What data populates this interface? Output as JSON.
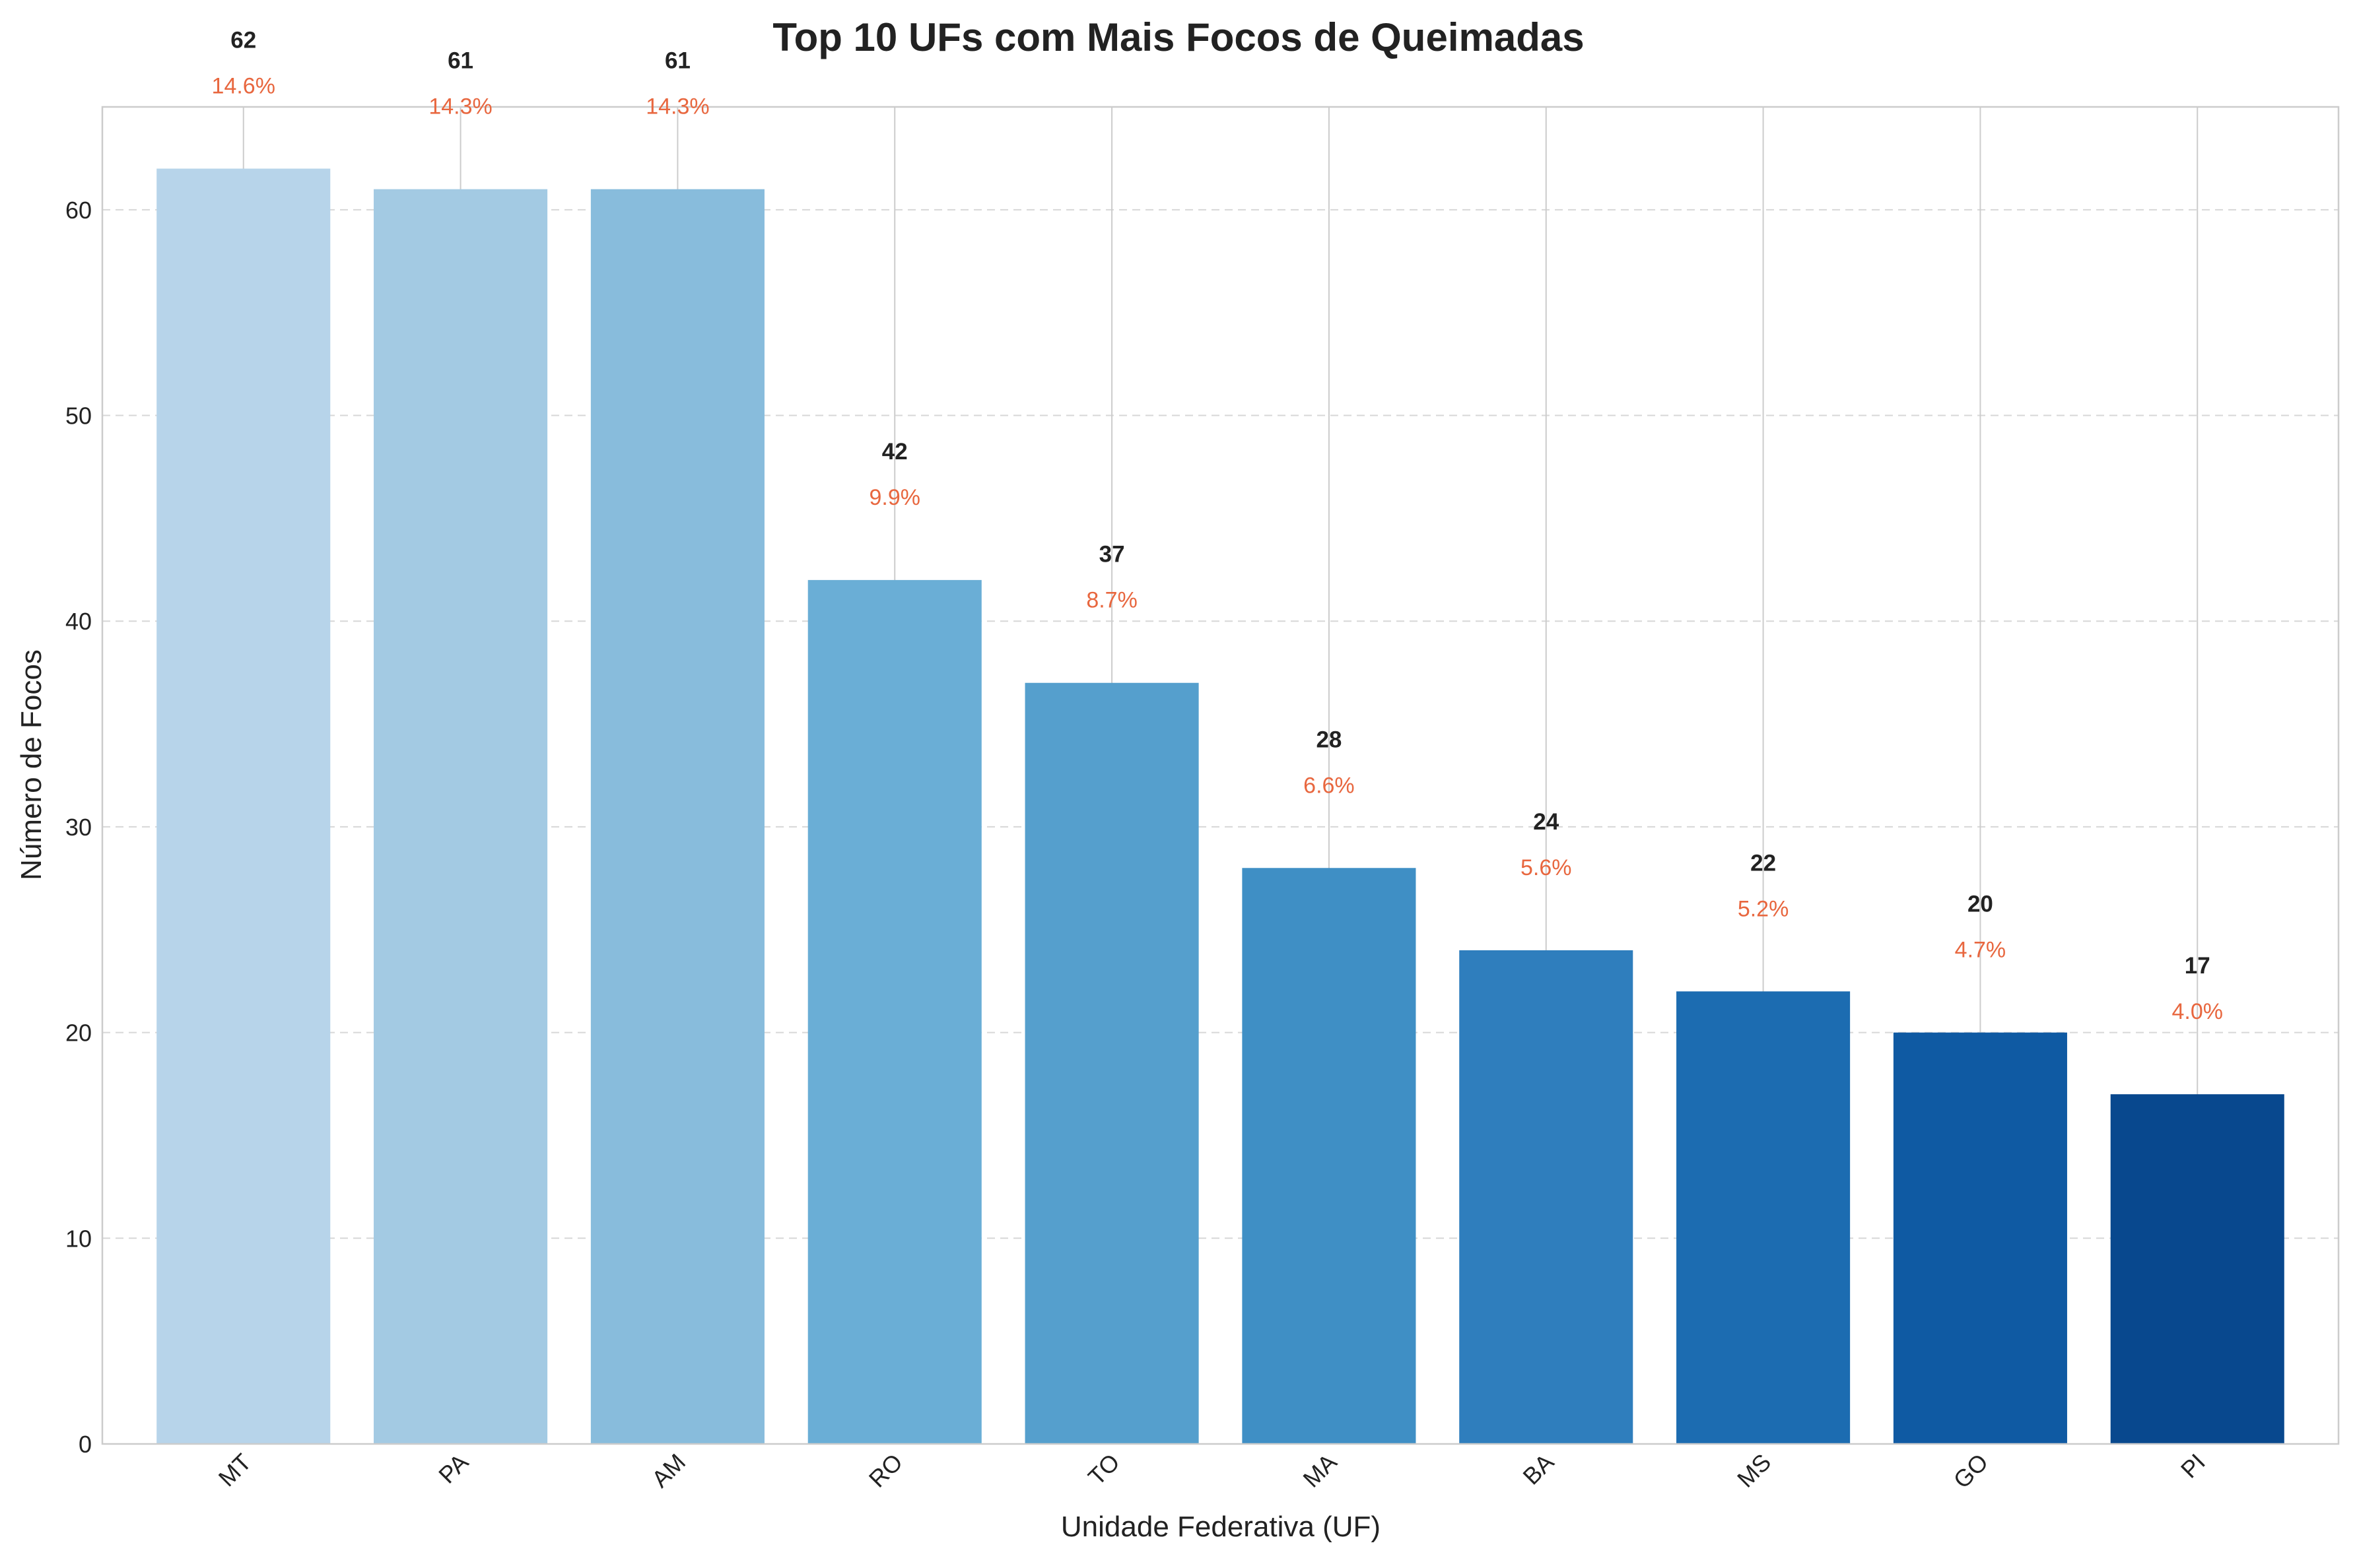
{
  "chart_data": {
    "type": "bar",
    "title": "Top 10 UFs com Mais Focos de Queimadas",
    "xlabel": "Unidade Federativa (UF)",
    "ylabel": "Número de Focos",
    "categories": [
      "MT",
      "PA",
      "AM",
      "RO",
      "TO",
      "MA",
      "BA",
      "MS",
      "GO",
      "PI"
    ],
    "values": [
      62,
      61,
      61,
      42,
      37,
      28,
      24,
      22,
      20,
      17
    ],
    "percent_labels": [
      "14.6%",
      "14.3%",
      "14.3%",
      "9.9%",
      "8.7%",
      "6.6%",
      "5.6%",
      "5.2%",
      "4.7%",
      "4.0%"
    ],
    "ylim": [
      0,
      65
    ],
    "yticks": [
      0,
      10,
      20,
      30,
      40,
      50,
      60
    ],
    "grid": true,
    "legend": false,
    "colors": {
      "bars": [
        "#b7d4ea",
        "#a3cae3",
        "#88bcdc",
        "#6aaed6",
        "#559fcd",
        "#3f8fc5",
        "#2f7ebd",
        "#1c6cb1",
        "#0f5aa3",
        "#08488e"
      ],
      "value_label": "#222222",
      "percent_label": "#e8673f",
      "grid": "#d7d7d7",
      "axes": "#cccccc",
      "title": "#222222"
    }
  }
}
